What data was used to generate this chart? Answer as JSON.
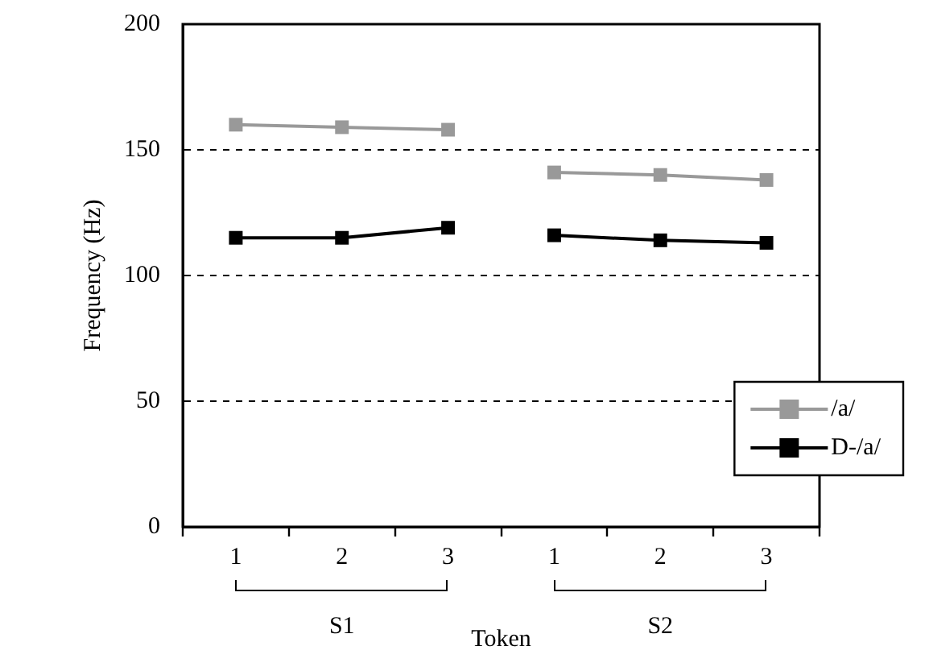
{
  "chart_data": {
    "type": "line",
    "xlabel": "Token",
    "ylabel": "Frequency (Hz)",
    "categories": [
      "1",
      "2",
      "3",
      "1",
      "2",
      "3"
    ],
    "series": [
      {
        "name": "/a/",
        "color": "#999999",
        "values": [
          160,
          159,
          158,
          141,
          140,
          138
        ]
      },
      {
        "name": "D-/a/",
        "color": "#000000",
        "values": [
          115,
          115,
          119,
          116,
          114,
          113
        ]
      }
    ],
    "annotations": [
      "S1",
      "S2"
    ],
    "ylim": [
      0,
      200
    ],
    "yticks": [
      0,
      50,
      100,
      150,
      200
    ],
    "grid": "y",
    "legend": "bottom right",
    "marker": "square",
    "line_style": "solid"
  }
}
